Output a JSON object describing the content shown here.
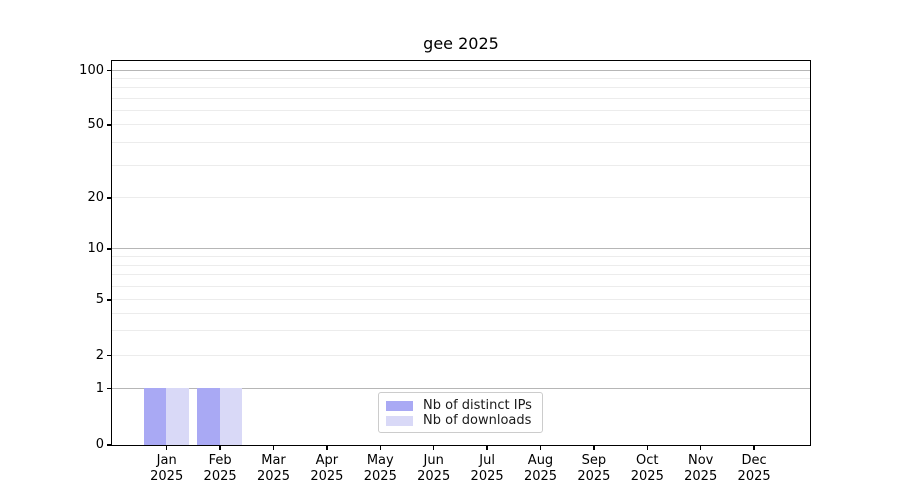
{
  "chart_data": {
    "type": "bar",
    "title": "gee 2025",
    "categories": [
      {
        "month": "Jan",
        "year": "2025"
      },
      {
        "month": "Feb",
        "year": "2025"
      },
      {
        "month": "Mar",
        "year": "2025"
      },
      {
        "month": "Apr",
        "year": "2025"
      },
      {
        "month": "May",
        "year": "2025"
      },
      {
        "month": "Jun",
        "year": "2025"
      },
      {
        "month": "Jul",
        "year": "2025"
      },
      {
        "month": "Aug",
        "year": "2025"
      },
      {
        "month": "Sep",
        "year": "2025"
      },
      {
        "month": "Oct",
        "year": "2025"
      },
      {
        "month": "Nov",
        "year": "2025"
      },
      {
        "month": "Dec",
        "year": "2025"
      }
    ],
    "series": [
      {
        "name": "Nb of distinct IPs",
        "color": "#a9a9f4",
        "values": [
          1,
          1,
          0,
          0,
          0,
          0,
          0,
          0,
          0,
          0,
          0,
          0
        ]
      },
      {
        "name": "Nb of downloads",
        "color": "#d9d9f7",
        "values": [
          1,
          1,
          0,
          0,
          0,
          0,
          0,
          0,
          0,
          0,
          0,
          0
        ]
      }
    ],
    "y_axis": {
      "scale": "symlog",
      "ylim": [
        0,
        100
      ],
      "tick_values": [
        0,
        1,
        2,
        5,
        10,
        20,
        50,
        100
      ],
      "tick_labels": [
        "0",
        "1",
        "2",
        "5",
        "10",
        "20",
        "50",
        "100"
      ],
      "major_grid_values": [
        1,
        10,
        100
      ],
      "minor_grid_values": [
        2,
        3,
        4,
        5,
        6,
        7,
        8,
        9,
        20,
        30,
        40,
        50,
        60,
        70,
        80,
        90
      ]
    },
    "legend": {
      "position": "lower center",
      "entries": [
        "Nb of distinct IPs",
        "Nb of downloads"
      ]
    },
    "grid": true,
    "colors": {
      "major_grid": "#b6b6b6",
      "minor_grid": "#ececec",
      "spine": "#000000",
      "background": "#ffffff"
    }
  }
}
